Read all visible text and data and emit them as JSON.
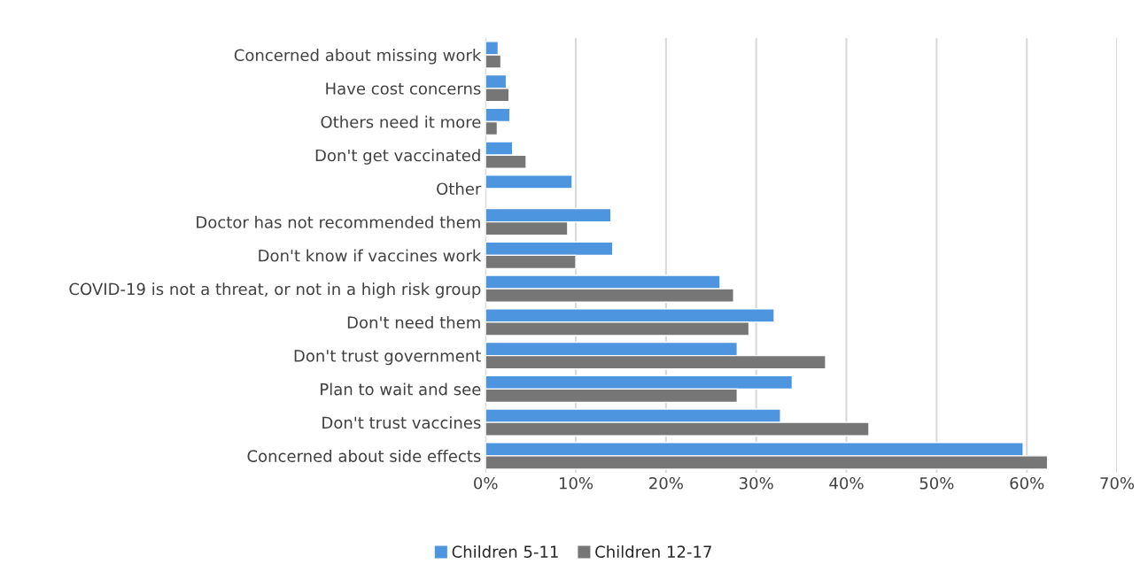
{
  "chart_data": {
    "type": "bar",
    "orientation": "horizontal",
    "categories": [
      "Concerned about missing work",
      "Have cost concerns",
      "Others need it more",
      "Don't get vaccinated",
      "Other",
      "Doctor has not recommended them",
      "Don't know if vaccines work",
      "COVID-19 is not a threat, or not in a high risk group",
      "Don't need them",
      "Don't trust government",
      "Plan to wait and see",
      "Don't trust vaccines",
      "Concerned about side effects"
    ],
    "series": [
      {
        "name": "Children 5-11",
        "color": "#4e95e0",
        "values": [
          1.4,
          2.3,
          2.7,
          3.0,
          9.6,
          13.9,
          14.1,
          26.0,
          32.0,
          27.9,
          34.0,
          32.7,
          59.6
        ]
      },
      {
        "name": "Children 12-17",
        "color": "#767676",
        "values": [
          1.7,
          2.6,
          1.3,
          4.5,
          null,
          9.1,
          10.0,
          27.5,
          29.2,
          37.7,
          27.9,
          42.5,
          62.3
        ]
      }
    ],
    "xlim": [
      0,
      70
    ],
    "xticks": [
      {
        "value": 0,
        "label": "0%"
      },
      {
        "value": 10,
        "label": "10%"
      },
      {
        "value": 20,
        "label": "20%"
      },
      {
        "value": 30,
        "label": "30%"
      },
      {
        "value": 40,
        "label": "40%"
      },
      {
        "value": 50,
        "label": "50%"
      },
      {
        "value": 60,
        "label": "60%"
      },
      {
        "value": 70,
        "label": "70%"
      }
    ],
    "grid": "x",
    "legend": "bottom"
  }
}
